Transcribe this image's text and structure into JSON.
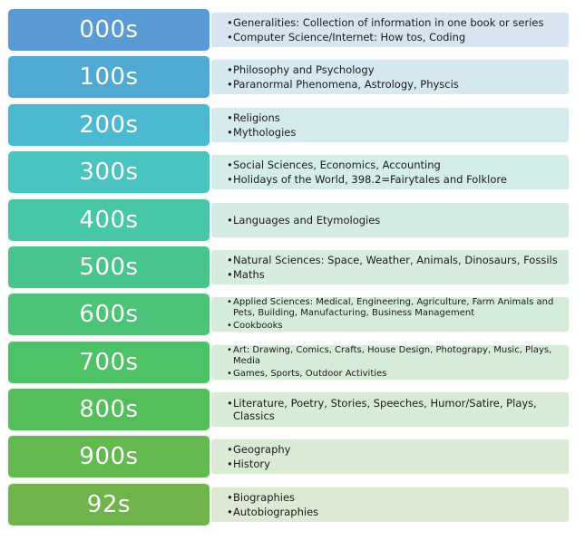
{
  "rows": [
    {
      "label": "000s",
      "color": "#5b9bd5",
      "panel": "#d9e4f1",
      "items": [
        "Generalities: Collection of information in one book or series",
        "Computer Science/Internet: How tos, Coding"
      ]
    },
    {
      "label": "100s",
      "color": "#4fa9d2",
      "panel": "#d6e8f0",
      "items": [
        "Philosophy and Psychology",
        "Paranormal Phenomena, Astrology, Physcis"
      ]
    },
    {
      "label": "200s",
      "color": "#4bbad0",
      "panel": "#d5ebee",
      "items": [
        "Religions",
        "Mythologies"
      ]
    },
    {
      "label": "300s",
      "color": "#49c4c1",
      "panel": "#d4ecea",
      "items": [
        "Social Sciences, Economics, Accounting",
        "Holidays of the World, 398.2=Fairytales and Folklore"
      ]
    },
    {
      "label": "400s",
      "color": "#47c6a8",
      "panel": "#d4ece5",
      "items": [
        "Languages and Etymologies"
      ]
    },
    {
      "label": "500s",
      "color": "#48c58d",
      "panel": "#d5ecdf",
      "items": [
        "Natural Sciences: Space, Weather, Animals, Dinosaurs, Fossils",
        "Maths"
      ]
    },
    {
      "label": "600s",
      "color": "#4bc477",
      "panel": "#d6ecdb",
      "items": [
        "Applied Sciences: Medical, Engineering, Agriculture, Farm Animals and Pets, Building, Manufacturing, Business Management",
        "Cookbooks"
      ]
    },
    {
      "label": "700s",
      "color": "#4ec266",
      "panel": "#d7ecd8",
      "items": [
        "Art: Drawing, Comics, Crafts, House Design, Photograpy, Music, Plays, Media",
        "Games, Sports, Outdoor Activities"
      ]
    },
    {
      "label": "800s",
      "color": "#53be5a",
      "panel": "#d8ebd6",
      "items": [
        "Literature, Poetry, Stories, Speeches, Humor/Satire, Plays, Classics"
      ]
    },
    {
      "label": "900s",
      "color": "#63b84f",
      "panel": "#dbeaD4",
      "items": [
        "Geography",
        "History"
      ]
    },
    {
      "label": "92s",
      "color": "#70b34a",
      "panel": "#dde9d3",
      "items": [
        "Biographies",
        "Autobiographies"
      ]
    }
  ]
}
